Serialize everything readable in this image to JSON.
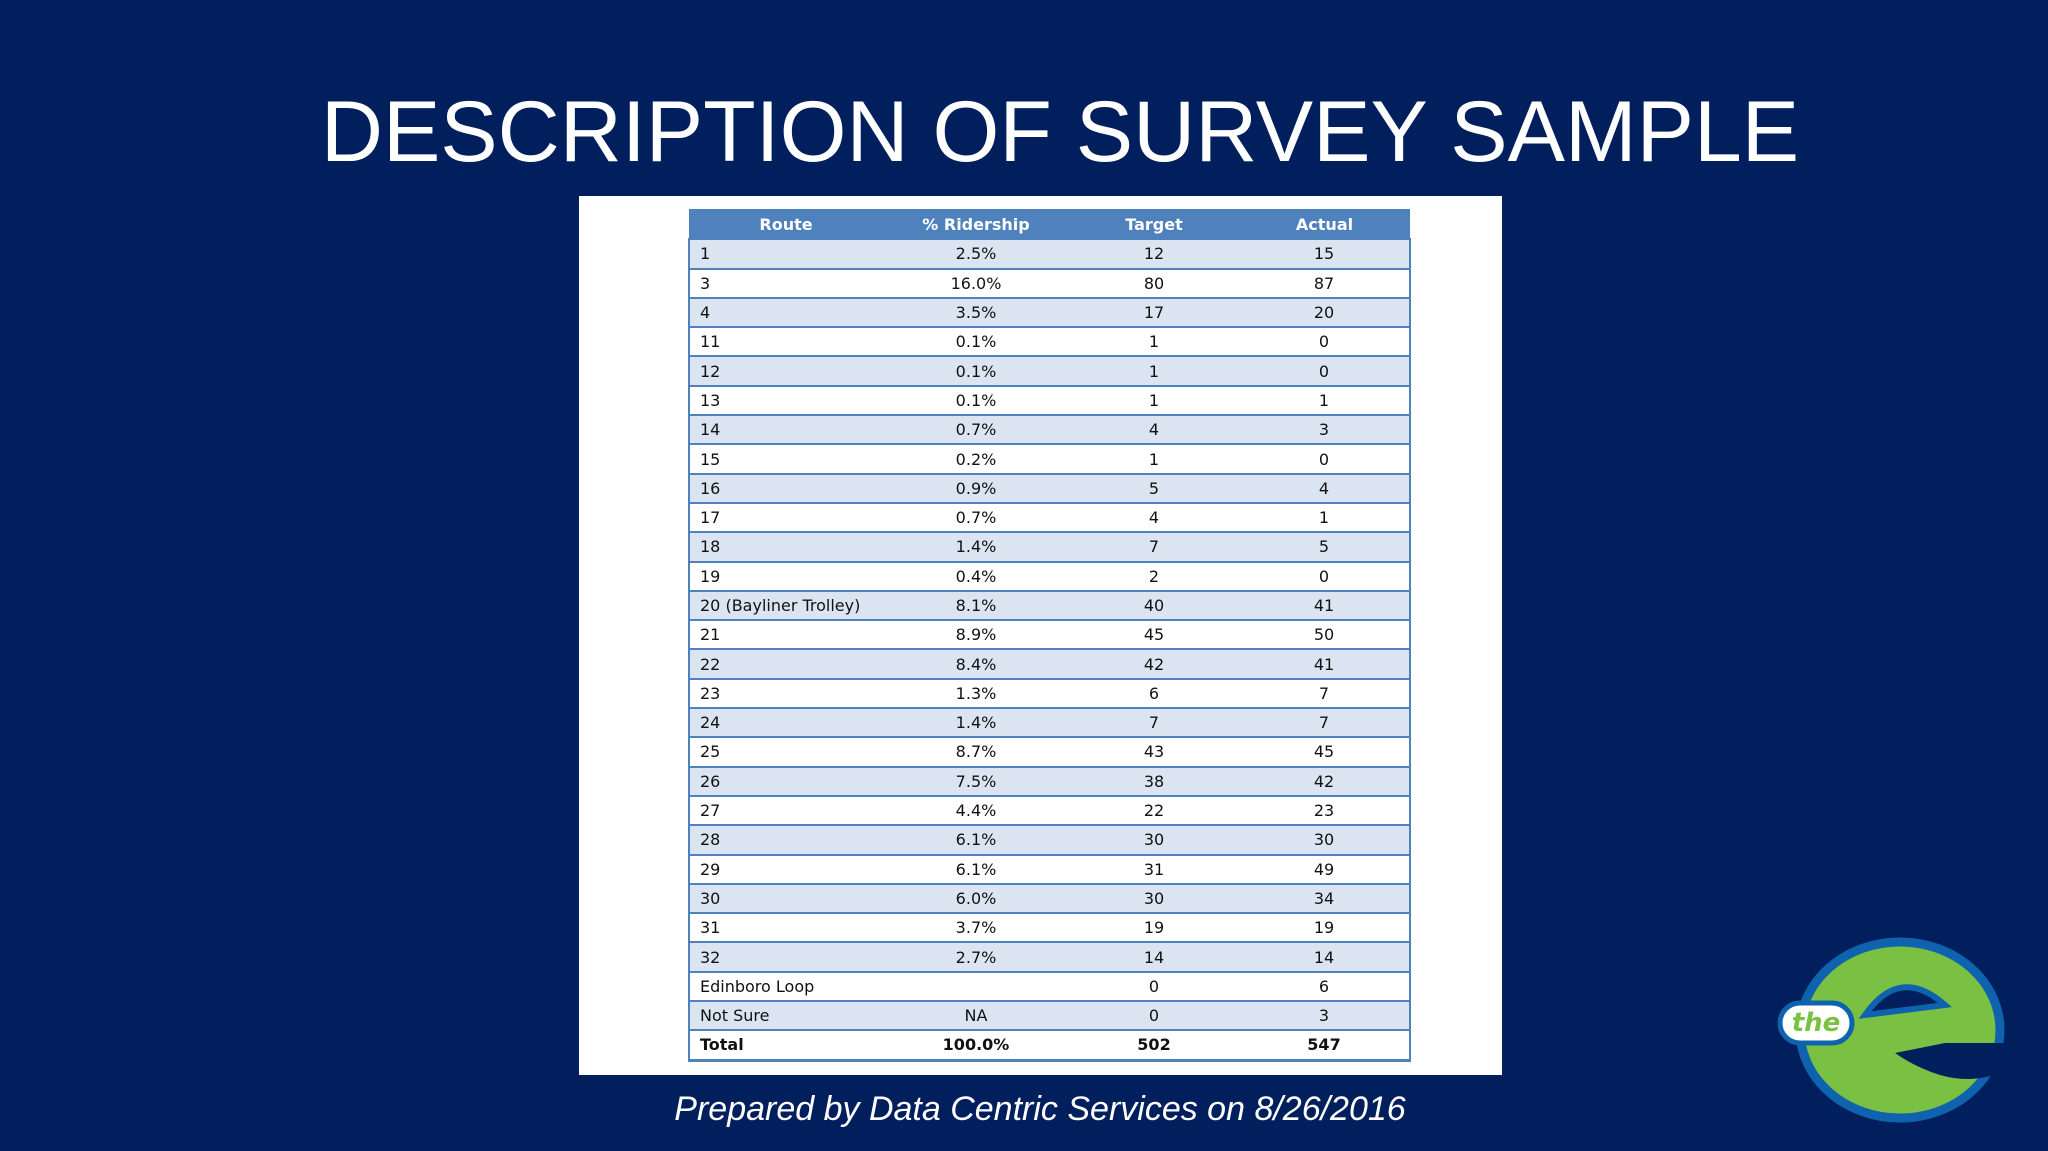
{
  "title": "DESCRIPTION OF SURVEY SAMPLE",
  "table": {
    "header": [
      "Route",
      "% Ridership",
      "Target",
      "Actual"
    ],
    "rows": [
      [
        "1",
        "2.5%",
        12,
        15
      ],
      [
        "3",
        "16.0%",
        80,
        87
      ],
      [
        "4",
        "3.5%",
        17,
        20
      ],
      [
        "11",
        "0.1%",
        1,
        0
      ],
      [
        "12",
        "0.1%",
        1,
        0
      ],
      [
        "13",
        "0.1%",
        1,
        1
      ],
      [
        "14",
        "0.7%",
        4,
        3
      ],
      [
        "15",
        "0.2%",
        1,
        0
      ],
      [
        "16",
        "0.9%",
        5,
        4
      ],
      [
        "17",
        "0.7%",
        4,
        1
      ],
      [
        "18",
        "1.4%",
        7,
        5
      ],
      [
        "19",
        "0.4%",
        2,
        0
      ],
      [
        "20 (Bayliner Trolley)",
        "8.1%",
        40,
        41
      ],
      [
        "21",
        "8.9%",
        45,
        50
      ],
      [
        "22",
        "8.4%",
        42,
        41
      ],
      [
        "23",
        "1.3%",
        6,
        7
      ],
      [
        "24",
        "1.4%",
        7,
        7
      ],
      [
        "25",
        "8.7%",
        43,
        45
      ],
      [
        "26",
        "7.5%",
        38,
        42
      ],
      [
        "27",
        "4.4%",
        22,
        23
      ],
      [
        "28",
        "6.1%",
        30,
        30
      ],
      [
        "29",
        "6.1%",
        31,
        49
      ],
      [
        "30",
        "6.0%",
        30,
        34
      ],
      [
        "31",
        "3.7%",
        19,
        19
      ],
      [
        "32",
        "2.7%",
        14,
        14
      ],
      [
        "Edinboro Loop",
        null,
        0,
        6
      ],
      [
        "Not Sure",
        "NA",
        0,
        3
      ]
    ],
    "total": [
      "Total",
      "100.0%",
      502,
      547
    ]
  },
  "footer": "Prepared by Data Centric Services on 8/26/2016",
  "logo": {
    "text": "the"
  }
}
